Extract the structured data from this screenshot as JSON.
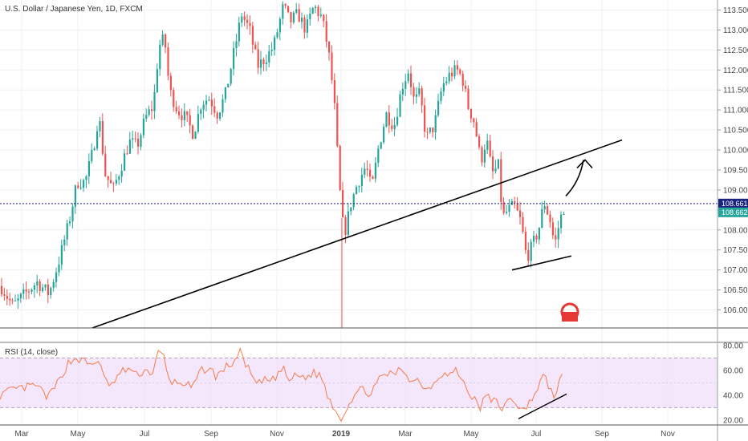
{
  "chart_data": [
    {
      "type": "candlestick",
      "title": "U.S. Dollar / Japanese Yen, 1D, FXCM",
      "y_ticks": [
        "106.000",
        "106.500",
        "107.000",
        "107.500",
        "108.000",
        "108.500",
        "109.000",
        "109.500",
        "110.000",
        "110.500",
        "111.000",
        "111.500",
        "112.000",
        "112.500",
        "113.000",
        "113.500"
      ],
      "x_ticks": [
        "Mar",
        "May",
        "Jul",
        "Sep",
        "Nov",
        "2019",
        "Mar",
        "May",
        "Jul",
        "Sep",
        "Nov"
      ],
      "ylim": [
        105.55,
        113.75
      ],
      "last_price": "108.661",
      "last_price_2": "108.662",
      "up_color": "#26a69a",
      "down_color": "#ef5350",
      "close_series": [
        {
          "x": 0,
          "c": 106.6
        },
        {
          "x": 15,
          "c": 106.1
        },
        {
          "x": 30,
          "c": 106.4
        },
        {
          "x": 45,
          "c": 106.7
        },
        {
          "x": 60,
          "c": 106.4
        },
        {
          "x": 72,
          "c": 107.2
        },
        {
          "x": 85,
          "c": 108.2
        },
        {
          "x": 95,
          "c": 109.2
        },
        {
          "x": 105,
          "c": 109.2
        },
        {
          "x": 115,
          "c": 110.0
        },
        {
          "x": 122,
          "c": 110.9
        },
        {
          "x": 130,
          "c": 109.4
        },
        {
          "x": 140,
          "c": 109.0
        },
        {
          "x": 150,
          "c": 109.6
        },
        {
          "x": 160,
          "c": 110.2
        },
        {
          "x": 170,
          "c": 110.1
        },
        {
          "x": 180,
          "c": 110.8
        },
        {
          "x": 190,
          "c": 111.1
        },
        {
          "x": 197,
          "c": 112.6
        },
        {
          "x": 204,
          "c": 112.8
        },
        {
          "x": 210,
          "c": 111.5
        },
        {
          "x": 220,
          "c": 111.0
        },
        {
          "x": 230,
          "c": 110.8
        },
        {
          "x": 240,
          "c": 110.4
        },
        {
          "x": 250,
          "c": 111.2
        },
        {
          "x": 260,
          "c": 111.3
        },
        {
          "x": 270,
          "c": 110.9
        },
        {
          "x": 280,
          "c": 111.4
        },
        {
          "x": 290,
          "c": 112.4
        },
        {
          "x": 300,
          "c": 113.4
        },
        {
          "x": 310,
          "c": 113.0
        },
        {
          "x": 320,
          "c": 112.1
        },
        {
          "x": 330,
          "c": 112.3
        },
        {
          "x": 340,
          "c": 112.6
        },
        {
          "x": 352,
          "c": 113.6
        },
        {
          "x": 360,
          "c": 113.2
        },
        {
          "x": 370,
          "c": 113.4
        },
        {
          "x": 380,
          "c": 113.0
        },
        {
          "x": 390,
          "c": 113.6
        },
        {
          "x": 400,
          "c": 113.3
        },
        {
          "x": 408,
          "c": 112.5
        },
        {
          "x": 415,
          "c": 111.3
        },
        {
          "x": 420,
          "c": 109.7
        },
        {
          "x": 425,
          "c": 108.2
        },
        {
          "x": 430,
          "c": 108.0
        },
        {
          "x": 435,
          "c": 108.6
        },
        {
          "x": 445,
          "c": 109.2
        },
        {
          "x": 455,
          "c": 109.6
        },
        {
          "x": 462,
          "c": 109.0
        },
        {
          "x": 470,
          "c": 110.0
        },
        {
          "x": 480,
          "c": 110.9
        },
        {
          "x": 490,
          "c": 110.6
        },
        {
          "x": 500,
          "c": 111.6
        },
        {
          "x": 508,
          "c": 112.0
        },
        {
          "x": 515,
          "c": 111.2
        },
        {
          "x": 522,
          "c": 111.4
        },
        {
          "x": 530,
          "c": 110.3
        },
        {
          "x": 540,
          "c": 110.6
        },
        {
          "x": 550,
          "c": 111.6
        },
        {
          "x": 560,
          "c": 111.9
        },
        {
          "x": 568,
          "c": 112.0
        },
        {
          "x": 575,
          "c": 111.8
        },
        {
          "x": 582,
          "c": 111.1
        },
        {
          "x": 590,
          "c": 110.7
        },
        {
          "x": 598,
          "c": 109.7
        },
        {
          "x": 605,
          "c": 110.3
        },
        {
          "x": 612,
          "c": 109.4
        },
        {
          "x": 620,
          "c": 109.6
        },
        {
          "x": 625,
          "c": 108.3
        },
        {
          "x": 632,
          "c": 108.5
        },
        {
          "x": 640,
          "c": 108.6
        },
        {
          "x": 648,
          "c": 108.2
        },
        {
          "x": 655,
          "c": 107.3
        },
        {
          "x": 662,
          "c": 107.6
        },
        {
          "x": 670,
          "c": 108.0
        },
        {
          "x": 677,
          "c": 108.7
        },
        {
          "x": 685,
          "c": 108.2
        },
        {
          "x": 690,
          "c": 107.6
        },
        {
          "x": 696,
          "c": 108.2
        },
        {
          "x": 703,
          "c": 108.66
        }
      ],
      "annotations": [
        "trendline",
        "support-line",
        "up-arrow"
      ]
    },
    {
      "type": "line",
      "title": "RSI (14, close)",
      "y_ticks": [
        "20.00",
        "40.00",
        "60.00",
        "80.00"
      ],
      "ylim": [
        16,
        82
      ],
      "band": [
        30,
        70
      ],
      "series_color": "#f57c4a",
      "band_color": "#efdcf9",
      "values": [
        {
          "x": 0,
          "y": 40
        },
        {
          "x": 15,
          "y": 44
        },
        {
          "x": 30,
          "y": 46
        },
        {
          "x": 45,
          "y": 48
        },
        {
          "x": 60,
          "y": 38
        },
        {
          "x": 72,
          "y": 50
        },
        {
          "x": 85,
          "y": 66
        },
        {
          "x": 95,
          "y": 70
        },
        {
          "x": 105,
          "y": 67
        },
        {
          "x": 115,
          "y": 64
        },
        {
          "x": 122,
          "y": 70
        },
        {
          "x": 130,
          "y": 52
        },
        {
          "x": 140,
          "y": 48
        },
        {
          "x": 150,
          "y": 58
        },
        {
          "x": 160,
          "y": 62
        },
        {
          "x": 170,
          "y": 56
        },
        {
          "x": 180,
          "y": 60
        },
        {
          "x": 190,
          "y": 58
        },
        {
          "x": 197,
          "y": 74
        },
        {
          "x": 204,
          "y": 71
        },
        {
          "x": 210,
          "y": 52
        },
        {
          "x": 220,
          "y": 50
        },
        {
          "x": 230,
          "y": 50
        },
        {
          "x": 240,
          "y": 45
        },
        {
          "x": 250,
          "y": 60
        },
        {
          "x": 260,
          "y": 62
        },
        {
          "x": 270,
          "y": 55
        },
        {
          "x": 280,
          "y": 62
        },
        {
          "x": 290,
          "y": 66
        },
        {
          "x": 300,
          "y": 75
        },
        {
          "x": 310,
          "y": 60
        },
        {
          "x": 320,
          "y": 48
        },
        {
          "x": 330,
          "y": 52
        },
        {
          "x": 340,
          "y": 52
        },
        {
          "x": 352,
          "y": 62
        },
        {
          "x": 360,
          "y": 52
        },
        {
          "x": 370,
          "y": 56
        },
        {
          "x": 380,
          "y": 54
        },
        {
          "x": 390,
          "y": 58
        },
        {
          "x": 400,
          "y": 56
        },
        {
          "x": 408,
          "y": 40
        },
        {
          "x": 415,
          "y": 32
        },
        {
          "x": 420,
          "y": 26
        },
        {
          "x": 425,
          "y": 21
        },
        {
          "x": 430,
          "y": 28
        },
        {
          "x": 435,
          "y": 34
        },
        {
          "x": 445,
          "y": 43
        },
        {
          "x": 455,
          "y": 45
        },
        {
          "x": 462,
          "y": 40
        },
        {
          "x": 470,
          "y": 50
        },
        {
          "x": 480,
          "y": 58
        },
        {
          "x": 490,
          "y": 56
        },
        {
          "x": 500,
          "y": 62
        },
        {
          "x": 508,
          "y": 56
        },
        {
          "x": 515,
          "y": 50
        },
        {
          "x": 522,
          "y": 54
        },
        {
          "x": 530,
          "y": 44
        },
        {
          "x": 540,
          "y": 50
        },
        {
          "x": 550,
          "y": 58
        },
        {
          "x": 560,
          "y": 56
        },
        {
          "x": 568,
          "y": 60
        },
        {
          "x": 575,
          "y": 54
        },
        {
          "x": 582,
          "y": 44
        },
        {
          "x": 590,
          "y": 38
        },
        {
          "x": 598,
          "y": 28
        },
        {
          "x": 605,
          "y": 42
        },
        {
          "x": 612,
          "y": 34
        },
        {
          "x": 620,
          "y": 37
        },
        {
          "x": 625,
          "y": 27
        },
        {
          "x": 632,
          "y": 34
        },
        {
          "x": 640,
          "y": 37
        },
        {
          "x": 648,
          "y": 30
        },
        {
          "x": 655,
          "y": 26
        },
        {
          "x": 662,
          "y": 38
        },
        {
          "x": 670,
          "y": 46
        },
        {
          "x": 677,
          "y": 56
        },
        {
          "x": 685,
          "y": 46
        },
        {
          "x": 690,
          "y": 38
        },
        {
          "x": 696,
          "y": 50
        },
        {
          "x": 703,
          "y": 56
        }
      ]
    }
  ]
}
